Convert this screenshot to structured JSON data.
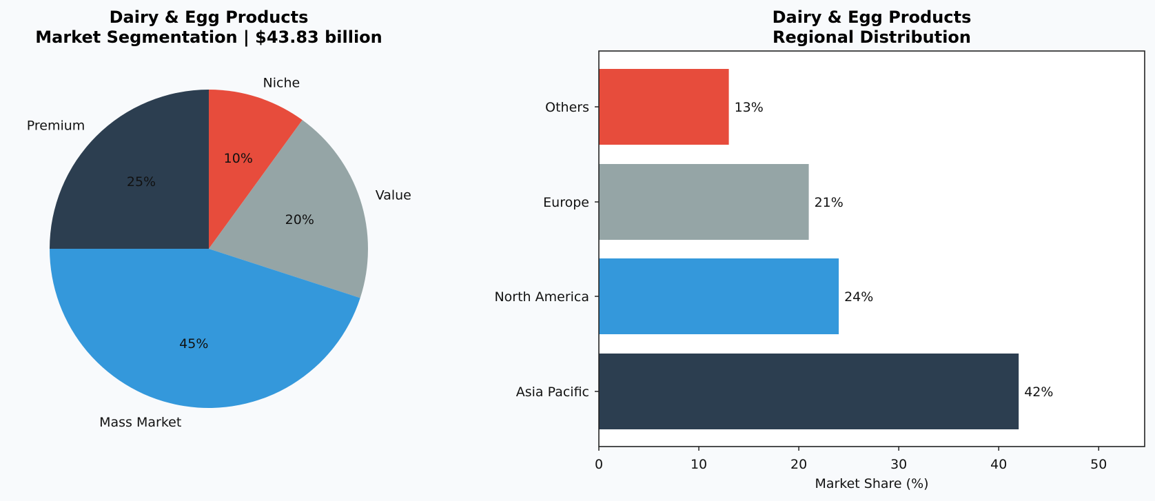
{
  "chart_data": [
    {
      "type": "pie",
      "title": "Dairy & Egg Products\nMarket Segmentation | $43.83 billion",
      "title_lines": [
        "Dairy & Egg Products",
        "Market Segmentation | $43.83 billion"
      ],
      "categories": [
        "Niche",
        "Value",
        "Mass Market",
        "Premium"
      ],
      "values": [
        10,
        20,
        45,
        25
      ],
      "value_labels": [
        "10%",
        "20%",
        "45%",
        "25%"
      ],
      "colors": [
        "#e74c3c",
        "#95a5a6",
        "#3498db",
        "#2c3e50"
      ],
      "start_angle": 90,
      "direction": "clockwise",
      "total": "$43.83 billion"
    },
    {
      "type": "bar",
      "orientation": "horizontal",
      "title": "Dairy & Egg Products\nRegional Distribution",
      "title_lines": [
        "Dairy & Egg Products",
        "Regional Distribution"
      ],
      "categories": [
        "Others",
        "Europe",
        "North America",
        "Asia Pacific"
      ],
      "values": [
        13,
        21,
        24,
        42
      ],
      "value_labels": [
        "13%",
        "21%",
        "24%",
        "42%"
      ],
      "colors": [
        "#e74c3c",
        "#95a5a6",
        "#3498db",
        "#2c3e50"
      ],
      "xlabel": "Market Share (%)",
      "ylabel": "",
      "xlim": [
        0,
        54.6
      ],
      "xticks": [
        0,
        10,
        20,
        30,
        40,
        50
      ],
      "grid": false
    }
  ]
}
